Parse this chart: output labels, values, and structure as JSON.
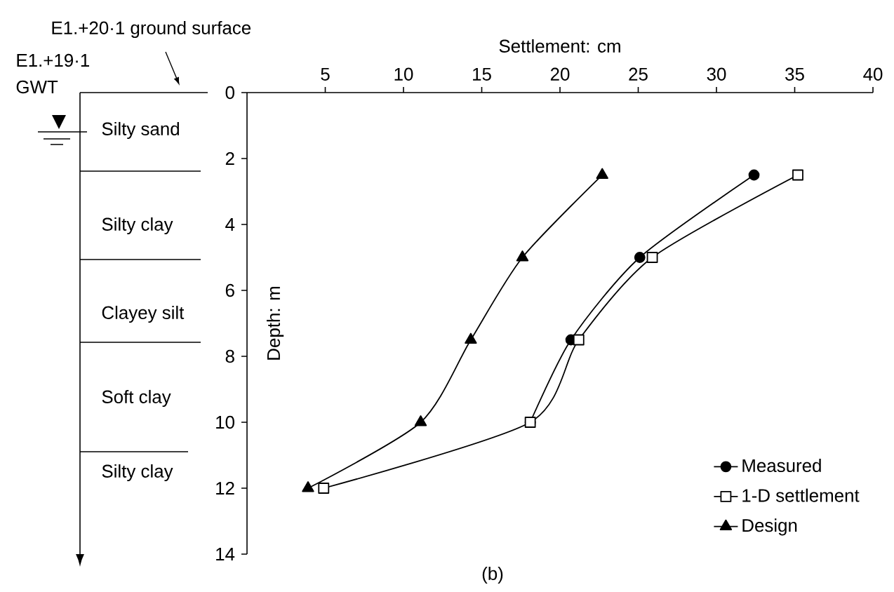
{
  "chart_data": {
    "type": "line",
    "xlabel": "Settlement: cm",
    "ylabel": "Depth: m",
    "xlim": [
      0,
      40
    ],
    "xticks": [
      5,
      10,
      15,
      20,
      25,
      30,
      35,
      40
    ],
    "ylim": [
      14,
      0
    ],
    "yticks": [
      0,
      2,
      4,
      6,
      8,
      10,
      12,
      14
    ],
    "legend": "bottom right",
    "grid": false,
    "series": [
      {
        "name": "Measured",
        "color": "#000000",
        "marker": "circle",
        "x": [
          32.4,
          25.1,
          20.7,
          18.1
        ],
        "values": [
          2.5,
          5,
          7.5,
          10
        ]
      },
      {
        "name": "1-D settlement",
        "color": "#000000",
        "marker": "square",
        "x": [
          35.2,
          25.9,
          21.2,
          18.1,
          4.9
        ],
        "values": [
          2.5,
          5,
          7.5,
          10,
          12
        ]
      },
      {
        "name": "Design",
        "color": "#000000",
        "marker": "triangle",
        "x": [
          22.7,
          17.6,
          14.3,
          11.1,
          3.9
        ],
        "values": [
          2.5,
          5,
          7.5,
          10,
          12
        ]
      }
    ],
    "annotations": [
      "E1.+20·1 ground surface",
      "E1.+19·1",
      "GWT",
      "Silty sand",
      "Silty clay",
      "Clayey silt",
      "Soft clay",
      "Silty clay",
      "(b)"
    ]
  }
}
